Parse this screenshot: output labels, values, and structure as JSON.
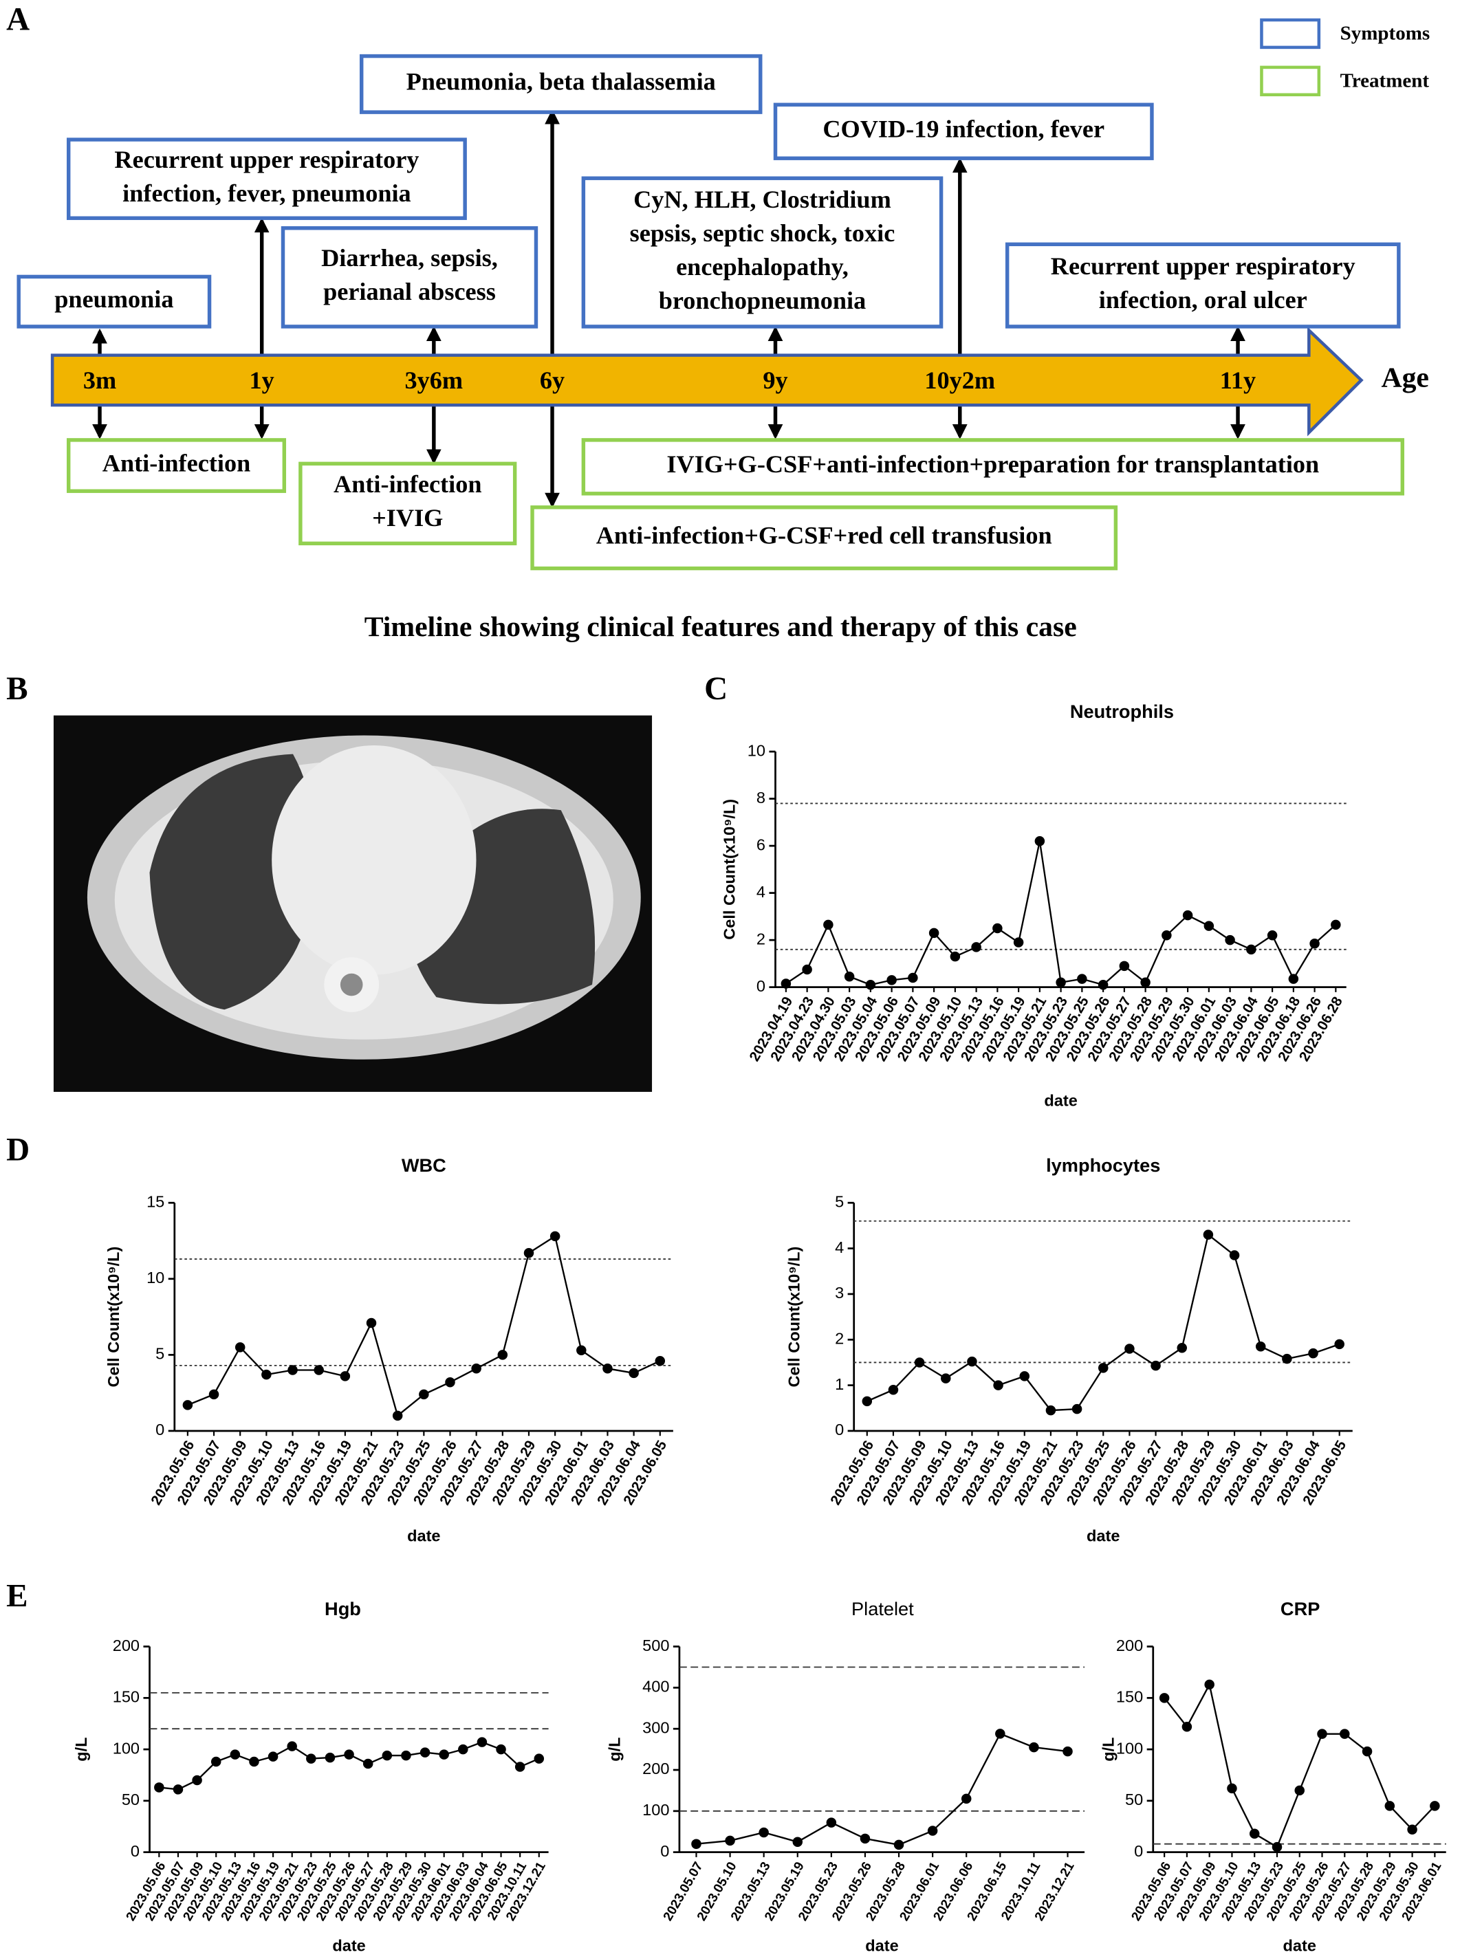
{
  "panels": [
    "A",
    "B",
    "C",
    "D",
    "E"
  ],
  "timeline": {
    "ages": [
      "3m",
      "1y",
      "3y6m",
      "6y",
      "9y",
      "10y2m",
      "11y"
    ],
    "axis_label": "Age",
    "legend": [
      "Symptoms",
      "Treatment"
    ],
    "symptoms": [
      [
        "pneumonia"
      ],
      [
        "Recurrent upper respiratory",
        "infection, fever, pneumonia"
      ],
      [
        "Diarrhea, sepsis,",
        "perianal abscess"
      ],
      [
        "Pneumonia, beta thalassemia"
      ],
      [
        "CyN, HLH, Clostridium",
        "sepsis, septic shock, toxic",
        "encephalopathy,",
        "bronchopneumonia"
      ],
      [
        "COVID-19 infection, fever"
      ],
      [
        "Recurrent upper respiratory",
        "infection, oral ulcer"
      ]
    ],
    "treatments": [
      [
        "Anti-infection"
      ],
      [
        "Anti-infection",
        "+IVIG"
      ],
      [
        "Anti-infection+G-CSF+red cell transfusion"
      ],
      [
        "IVIG+G-CSF+anti-infection+preparation for transplantation"
      ]
    ],
    "caption": "Timeline showing clinical features and therapy of this case"
  },
  "chart_data": [
    {
      "type": "line",
      "title": "Neutrophils",
      "ylabel": "Cell Count(x10⁹/L)",
      "xlabel": "date",
      "categories": [
        "2023.04.19",
        "2023.04.23",
        "2023.04.30",
        "2023.05.03",
        "2023.05.04",
        "2023.05.06",
        "2023.05.07",
        "2023.05.09",
        "2023.05.10",
        "2023.05.13",
        "2023.05.16",
        "2023.05.19",
        "2023.05.21",
        "2023.05.23",
        "2023.05.25",
        "2023.05.26",
        "2023.05.27",
        "2023.05.28",
        "2023.05.29",
        "2023.05.30",
        "2023.06.01",
        "2023.06.03",
        "2023.06.04",
        "2023.06.05",
        "2023.06.18",
        "2023.06.26",
        "2023.06.28"
      ],
      "values": [
        0.15,
        0.75,
        2.65,
        0.45,
        0.1,
        0.3,
        0.4,
        2.3,
        1.3,
        1.7,
        2.5,
        1.9,
        6.2,
        0.2,
        0.35,
        0.1,
        0.9,
        0.2,
        2.2,
        3.05,
        2.6,
        2.0,
        1.6,
        2.2,
        0.35,
        1.85,
        2.65
      ],
      "ylim": [
        0,
        10
      ],
      "yticks": [
        0,
        2,
        4,
        6,
        8,
        10
      ],
      "reference_lines": [
        1.6,
        7.8
      ],
      "color": "#000000"
    },
    {
      "type": "line",
      "title": "WBC",
      "ylabel": "Cell Count(x10⁹/L)",
      "xlabel": "date",
      "categories": [
        "2023.05.06",
        "2023.05.07",
        "2023.05.09",
        "2023.05.10",
        "2023.05.13",
        "2023.05.16",
        "2023.05.19",
        "2023.05.21",
        "2023.05.23",
        "2023.05.25",
        "2023.05.26",
        "2023.05.27",
        "2023.05.28",
        "2023.05.29",
        "2023.05.30",
        "2023.06.01",
        "2023.06.03",
        "2023.06.04",
        "2023.06.05"
      ],
      "values": [
        1.7,
        2.4,
        5.5,
        3.7,
        4.0,
        4.0,
        3.6,
        7.1,
        1.0,
        2.4,
        3.2,
        4.1,
        5.0,
        11.7,
        12.8,
        5.3,
        4.1,
        3.8,
        4.6
      ],
      "ylim": [
        0,
        15
      ],
      "yticks": [
        0,
        5,
        10,
        15
      ],
      "reference_lines": [
        4.3,
        11.3
      ],
      "color": "#000000"
    },
    {
      "type": "line",
      "title": "lymphocytes",
      "ylabel": "Cell Count(x10⁹/L)",
      "xlabel": "date",
      "categories": [
        "2023.05.06",
        "2023.05.07",
        "2023.05.09",
        "2023.05.10",
        "2023.05.13",
        "2023.05.16",
        "2023.05.19",
        "2023.05.21",
        "2023.05.23",
        "2023.05.25",
        "2023.05.26",
        "2023.05.27",
        "2023.05.28",
        "2023.05.29",
        "2023.05.30",
        "2023.06.01",
        "2023.06.03",
        "2023.06.04",
        "2023.06.05"
      ],
      "values": [
        0.65,
        0.9,
        1.5,
        1.15,
        1.52,
        1.0,
        1.2,
        0.45,
        0.48,
        1.38,
        1.8,
        1.43,
        1.82,
        4.3,
        3.85,
        1.85,
        1.58,
        1.7,
        1.9
      ],
      "ylim": [
        0,
        5
      ],
      "yticks": [
        0,
        1,
        2,
        3,
        4,
        5
      ],
      "reference_lines": [
        1.5,
        4.6
      ],
      "color": "#000000"
    },
    {
      "type": "line",
      "title": "Hgb",
      "ylabel": "g/L",
      "xlabel": "date",
      "categories": [
        "2023.05.06",
        "2023.05.07",
        "2023.05.09",
        "2023.05.10",
        "2023.05.13",
        "2023.05.16",
        "2023.05.19",
        "2023.05.21",
        "2023.05.23",
        "2023.05.25",
        "2023.05.26",
        "2023.05.27",
        "2023.05.28",
        "2023.05.29",
        "2023.05.30",
        "2023.06.01",
        "2023.06.03",
        "2023.06.04",
        "2023.06.05",
        "2023.10.11",
        "2023.12.21"
      ],
      "values": [
        63,
        61,
        70,
        88,
        95,
        88,
        93,
        103,
        91,
        92,
        95,
        86,
        94,
        94,
        97,
        95,
        100,
        107,
        100,
        83,
        91
      ],
      "ylim": [
        0,
        200
      ],
      "yticks": [
        0,
        50,
        100,
        150,
        200
      ],
      "reference_lines": [
        120,
        155
      ],
      "color": "#000000"
    },
    {
      "type": "line",
      "title": "Platelet",
      "ylabel": "g/L",
      "xlabel": "date",
      "categories": [
        "2023.05.07",
        "2023.05.10",
        "2023.05.13",
        "2023.05.19",
        "2023.05.23",
        "2023.05.26",
        "2023.05.28",
        "2023.06.01",
        "2023.06.06",
        "2023.06.15",
        "2023.10.11",
        "2023.12.21"
      ],
      "values": [
        20,
        28,
        48,
        25,
        72,
        33,
        18,
        52,
        130,
        288,
        255,
        245
      ],
      "ylim": [
        0,
        500
      ],
      "yticks": [
        0,
        100,
        200,
        300,
        400,
        500
      ],
      "reference_lines": [
        100,
        450
      ],
      "color": "#000000"
    },
    {
      "type": "line",
      "title": "CRP",
      "ylabel": "g/L",
      "xlabel": "date",
      "categories": [
        "2023.05.06",
        "2023.05.07",
        "2023.05.09",
        "2023.05.10",
        "2023.05.13",
        "2023.05.23",
        "2023.05.25",
        "2023.05.26",
        "2023.05.27",
        "2023.05.28",
        "2023.05.29",
        "2023.05.30",
        "2023.06.01"
      ],
      "values": [
        150,
        122,
        163,
        62,
        18,
        5,
        60,
        115,
        115,
        98,
        45,
        22,
        45
      ],
      "ylim": [
        0,
        200
      ],
      "yticks": [
        0,
        50,
        100,
        150,
        200
      ],
      "reference_lines": [
        8
      ],
      "color": "#000000"
    }
  ]
}
